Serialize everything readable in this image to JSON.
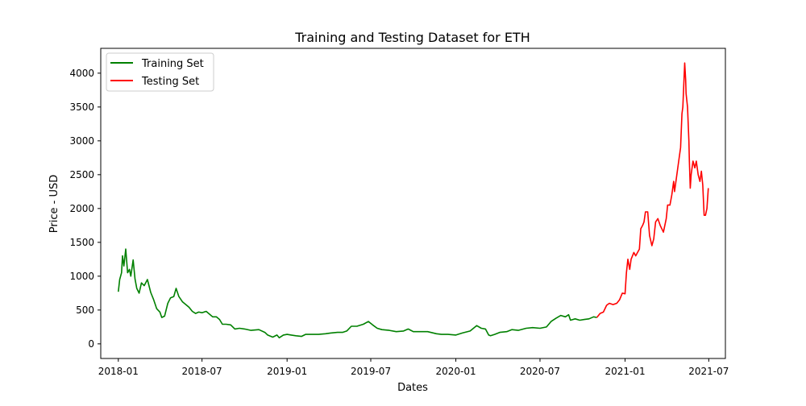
{
  "chart_data": {
    "type": "line",
    "title": "Training and Testing Dataset for ETH",
    "xlabel": "Dates",
    "ylabel": "Price - USD",
    "xlim": [
      "2017-11-24",
      "2021-08-06"
    ],
    "ylim": [
      -216,
      4367
    ],
    "grid": false,
    "legend": "top-left",
    "xticks": [
      {
        "date": "2018-01-01",
        "label": "2018-01"
      },
      {
        "date": "2018-07-01",
        "label": "2018-07"
      },
      {
        "date": "2019-01-01",
        "label": "2019-01"
      },
      {
        "date": "2019-07-01",
        "label": "2019-07"
      },
      {
        "date": "2020-01-01",
        "label": "2020-01"
      },
      {
        "date": "2020-07-01",
        "label": "2020-07"
      },
      {
        "date": "2021-01-01",
        "label": "2021-01"
      },
      {
        "date": "2021-07-01",
        "label": "2021-07"
      }
    ],
    "yticks": [
      0,
      500,
      1000,
      1500,
      2000,
      2500,
      3000,
      3500,
      4000
    ],
    "series": [
      {
        "name": "Training Set",
        "color": "#008000",
        "x": [
          "2018-01-01",
          "2018-01-04",
          "2018-01-08",
          "2018-01-10",
          "2018-01-13",
          "2018-01-17",
          "2018-01-21",
          "2018-01-25",
          "2018-01-28",
          "2018-02-02",
          "2018-02-06",
          "2018-02-10",
          "2018-02-15",
          "2018-02-20",
          "2018-02-26",
          "2018-03-05",
          "2018-03-12",
          "2018-03-18",
          "2018-03-25",
          "2018-04-01",
          "2018-04-05",
          "2018-04-11",
          "2018-04-18",
          "2018-04-24",
          "2018-05-01",
          "2018-05-06",
          "2018-05-12",
          "2018-05-20",
          "2018-05-27",
          "2018-06-03",
          "2018-06-10",
          "2018-06-17",
          "2018-06-24",
          "2018-07-01",
          "2018-07-10",
          "2018-07-17",
          "2018-07-24",
          "2018-08-01",
          "2018-08-08",
          "2018-08-14",
          "2018-08-22",
          "2018-09-01",
          "2018-09-10",
          "2018-09-20",
          "2018-10-01",
          "2018-10-15",
          "2018-11-01",
          "2018-11-14",
          "2018-11-20",
          "2018-12-01",
          "2018-12-10",
          "2018-12-15",
          "2018-12-24",
          "2019-01-01",
          "2019-01-10",
          "2019-01-20",
          "2019-02-01",
          "2019-02-10",
          "2019-02-24",
          "2019-03-10",
          "2019-03-25",
          "2019-04-05",
          "2019-04-20",
          "2019-05-01",
          "2019-05-10",
          "2019-05-20",
          "2019-06-01",
          "2019-06-15",
          "2019-06-26",
          "2019-07-05",
          "2019-07-15",
          "2019-07-25",
          "2019-08-10",
          "2019-08-25",
          "2019-09-10",
          "2019-09-20",
          "2019-10-01",
          "2019-10-20",
          "2019-11-01",
          "2019-11-20",
          "2019-12-01",
          "2019-12-15",
          "2020-01-01",
          "2020-01-15",
          "2020-02-01",
          "2020-02-15",
          "2020-02-25",
          "2020-03-05",
          "2020-03-12",
          "2020-03-16",
          "2020-03-25",
          "2020-04-05",
          "2020-04-20",
          "2020-05-01",
          "2020-05-15",
          "2020-06-01",
          "2020-06-15",
          "2020-07-01",
          "2020-07-15",
          "2020-07-25",
          "2020-08-05",
          "2020-08-15",
          "2020-08-25",
          "2020-09-01",
          "2020-09-05",
          "2020-09-15",
          "2020-09-25",
          "2020-10-05",
          "2020-10-15",
          "2020-10-25",
          "2020-11-01"
        ],
        "y": [
          770,
          950,
          1050,
          1300,
          1150,
          1400,
          1050,
          1100,
          1000,
          1240,
          960,
          820,
          750,
          900,
          860,
          950,
          760,
          660,
          520,
          470,
          390,
          410,
          600,
          680,
          700,
          820,
          700,
          620,
          580,
          540,
          480,
          450,
          470,
          460,
          480,
          440,
          400,
          400,
          360,
          290,
          290,
          280,
          220,
          230,
          220,
          200,
          210,
          170,
          130,
          100,
          130,
          90,
          130,
          140,
          130,
          120,
          110,
          140,
          140,
          140,
          150,
          160,
          170,
          170,
          190,
          260,
          260,
          290,
          330,
          280,
          230,
          210,
          200,
          180,
          190,
          220,
          180,
          180,
          180,
          150,
          140,
          140,
          130,
          160,
          190,
          270,
          230,
          220,
          130,
          120,
          140,
          170,
          180,
          210,
          200,
          230,
          240,
          230,
          250,
          330,
          380,
          420,
          400,
          430,
          350,
          370,
          350,
          360,
          370,
          400,
          390
        ]
      },
      {
        "name": "Testing Set",
        "color": "#ff0000",
        "x": [
          "2020-11-01",
          "2020-11-08",
          "2020-11-15",
          "2020-11-22",
          "2020-11-28",
          "2020-12-06",
          "2020-12-14",
          "2020-12-20",
          "2020-12-26",
          "2021-01-01",
          "2021-01-04",
          "2021-01-07",
          "2021-01-11",
          "2021-01-14",
          "2021-01-20",
          "2021-01-24",
          "2021-01-28",
          "2021-02-01",
          "2021-02-04",
          "2021-02-08",
          "2021-02-11",
          "2021-02-14",
          "2021-02-19",
          "2021-02-23",
          "2021-02-28",
          "2021-03-04",
          "2021-03-08",
          "2021-03-13",
          "2021-03-18",
          "2021-03-25",
          "2021-03-31",
          "2021-04-03",
          "2021-04-08",
          "2021-04-12",
          "2021-04-16",
          "2021-04-18",
          "2021-04-22",
          "2021-04-26",
          "2021-05-01",
          "2021-05-04",
          "2021-05-06",
          "2021-05-10",
          "2021-05-12",
          "2021-05-13",
          "2021-05-16",
          "2021-05-19",
          "2021-05-20",
          "2021-05-22",
          "2021-05-24",
          "2021-05-28",
          "2021-06-01",
          "2021-06-04",
          "2021-06-08",
          "2021-06-12",
          "2021-06-15",
          "2021-06-18",
          "2021-06-21",
          "2021-06-24",
          "2021-06-27",
          "2021-06-30"
        ],
        "y": [
          390,
          450,
          470,
          570,
          600,
          580,
          600,
          650,
          750,
          740,
          1050,
          1250,
          1100,
          1250,
          1350,
          1300,
          1350,
          1400,
          1700,
          1750,
          1800,
          1950,
          1950,
          1600,
          1450,
          1550,
          1800,
          1850,
          1750,
          1650,
          1850,
          2050,
          2050,
          2200,
          2400,
          2250,
          2450,
          2650,
          2900,
          3400,
          3500,
          4150,
          3900,
          3700,
          3500,
          3000,
          2700,
          2300,
          2500,
          2700,
          2600,
          2700,
          2500,
          2400,
          2550,
          2350,
          1900,
          1900,
          2000,
          2300
        ]
      }
    ]
  }
}
